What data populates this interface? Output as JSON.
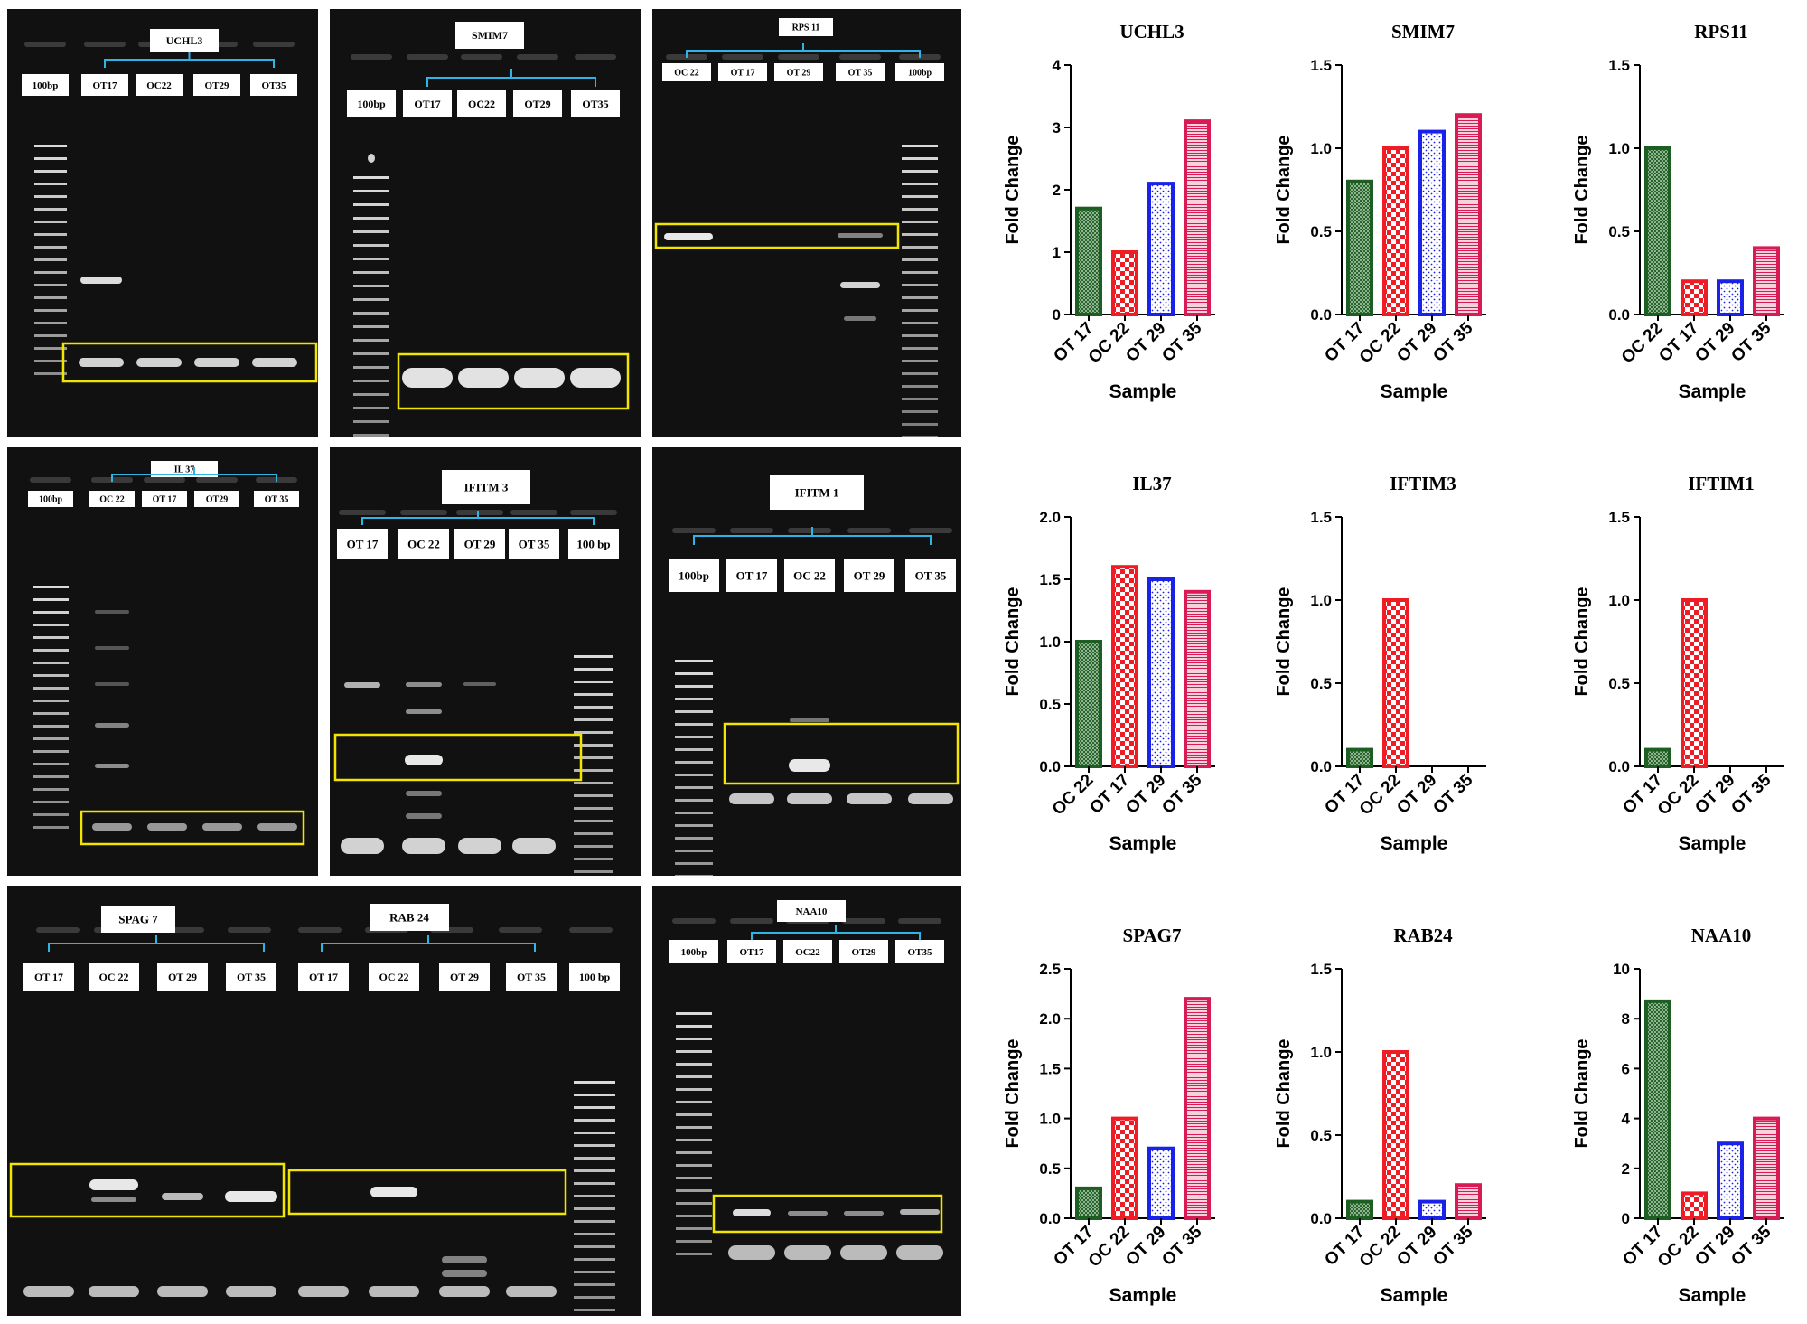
{
  "gels": [
    {
      "id": "uchl3",
      "title": "UCHL3",
      "lanes": [
        "100bp",
        "OT17",
        "OC22",
        "OT29",
        "OT35"
      ]
    },
    {
      "id": "smim7",
      "title": "SMIM7",
      "lanes": [
        "100bp",
        "OT17",
        "OC22",
        "OT29",
        "OT35"
      ]
    },
    {
      "id": "rps11",
      "title": "RPS 11",
      "lanes": [
        "OC 22",
        "OT 17",
        "OT 29",
        "OT 35",
        "100bp"
      ]
    },
    {
      "id": "il37",
      "title": "IL 37",
      "lanes": [
        "100bp",
        "OC 22",
        "OT 17",
        "OT29",
        "OT 35"
      ]
    },
    {
      "id": "iftim3",
      "title": "IFITM 3",
      "lanes": [
        "OT 17",
        "OC 22",
        "OT 29",
        "OT 35",
        "100 bp"
      ]
    },
    {
      "id": "iftim1",
      "title": "IFITM 1",
      "lanes": [
        "100bp",
        "OT 17",
        "OC 22",
        "OT 29",
        "OT 35"
      ]
    },
    {
      "id": "spag7rab24",
      "titles": [
        "SPAG 7",
        "RAB 24"
      ],
      "lanes": [
        "OT 17",
        "OC 22",
        "OT 29",
        "OT 35",
        "OT 17",
        "OC 22",
        "OT 29",
        "OT 35",
        "100 bp"
      ]
    },
    {
      "id": "naa10",
      "title": "NAA10",
      "lanes": [
        "100bp",
        "OT17",
        "OC22",
        "OT29",
        "OT35"
      ]
    }
  ],
  "colors": {
    "green": "#1d5e22",
    "red": "#ee1c24",
    "blue": "#1b22e8",
    "crimson": "#d81b54",
    "highlight": "#f2e600",
    "bracket": "#2fb4e6"
  },
  "chart_data": [
    {
      "type": "bar",
      "title": "UCHL3",
      "xlabel": "Sample",
      "ylabel": "Fold Change",
      "categories": [
        "OT 17",
        "OC 22",
        "OT 29",
        "OT 35"
      ],
      "values": [
        1.7,
        1.0,
        2.1,
        3.1
      ],
      "ylim": [
        0,
        4
      ],
      "yticks": [
        "0",
        "1",
        "2",
        "3",
        "4"
      ]
    },
    {
      "type": "bar",
      "title": "SMIM7",
      "xlabel": "Sample",
      "ylabel": "Fold Change",
      "categories": [
        "OT 17",
        "OC 22",
        "OT 29",
        "OT 35"
      ],
      "values": [
        0.8,
        1.0,
        1.1,
        1.2
      ],
      "ylim": [
        0,
        1.5
      ],
      "yticks": [
        "0.0",
        "0.5",
        "1.0",
        "1.5"
      ]
    },
    {
      "type": "bar",
      "title": "RPS11",
      "xlabel": "Sample",
      "ylabel": "Fold Change",
      "categories": [
        "OC 22",
        "OT 17",
        "OT 29",
        "OT 35"
      ],
      "values": [
        1.0,
        0.2,
        0.2,
        0.4
      ],
      "ylim": [
        0,
        1.5
      ],
      "yticks": [
        "0.0",
        "0.5",
        "1.0",
        "1.5"
      ]
    },
    {
      "type": "bar",
      "title": "IL37",
      "xlabel": "Sample",
      "ylabel": "Fold Change",
      "categories": [
        "OC 22",
        "OT 17",
        "OT 29",
        "OT 35"
      ],
      "values": [
        1.0,
        1.6,
        1.5,
        1.4
      ],
      "ylim": [
        0,
        2.0
      ],
      "yticks": [
        "0.0",
        "0.5",
        "1.0",
        "1.5",
        "2.0"
      ]
    },
    {
      "type": "bar",
      "title": "IFTIM3",
      "xlabel": "Sample",
      "ylabel": "Fold Change",
      "categories": [
        "OT 17",
        "OC 22",
        "OT 29",
        "OT 35"
      ],
      "values": [
        0.1,
        1.0,
        0,
        0
      ],
      "ylim": [
        0,
        1.5
      ],
      "yticks": [
        "0.0",
        "0.5",
        "1.0",
        "1.5"
      ]
    },
    {
      "type": "bar",
      "title": "IFTIM1",
      "xlabel": "Sample",
      "ylabel": "Fold Change",
      "categories": [
        "OT 17",
        "OC 22",
        "OT 29",
        "OT 35"
      ],
      "values": [
        0.1,
        1.0,
        0,
        0
      ],
      "ylim": [
        0,
        1.5
      ],
      "yticks": [
        "0.0",
        "0.5",
        "1.0",
        "1.5"
      ]
    },
    {
      "type": "bar",
      "title": "SPAG7",
      "xlabel": "Sample",
      "ylabel": "Fold Change",
      "categories": [
        "OT 17",
        "OC 22",
        "OT 29",
        "OT 35"
      ],
      "values": [
        0.3,
        1.0,
        0.7,
        2.2
      ],
      "ylim": [
        0,
        2.5
      ],
      "yticks": [
        "0.0",
        "0.5",
        "1.0",
        "1.5",
        "2.0",
        "2.5"
      ]
    },
    {
      "type": "bar",
      "title": "RAB24",
      "xlabel": "Sample",
      "ylabel": "Fold Change",
      "categories": [
        "OT 17",
        "OC 22",
        "OT 29",
        "OT 35"
      ],
      "values": [
        0.1,
        1.0,
        0.1,
        0.2
      ],
      "ylim": [
        0,
        1.5
      ],
      "yticks": [
        "0.0",
        "0.5",
        "1.0",
        "1.5"
      ]
    },
    {
      "type": "bar",
      "title": "NAA10",
      "xlabel": "Sample",
      "ylabel": "Fold Change",
      "categories": [
        "OT 17",
        "OC 22",
        "OT 29",
        "OT 35"
      ],
      "values": [
        8.7,
        1.0,
        3.0,
        4.0
      ],
      "ylim": [
        0,
        10
      ],
      "yticks": [
        "0",
        "2",
        "4",
        "6",
        "8",
        "10"
      ]
    }
  ]
}
